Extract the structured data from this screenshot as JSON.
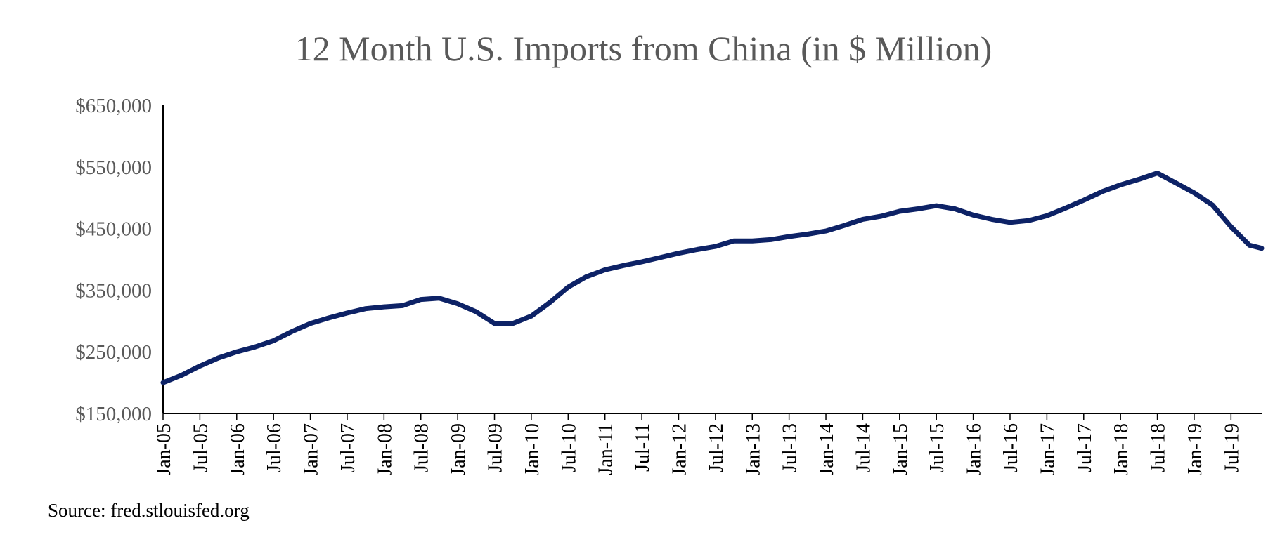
{
  "chart_data": {
    "type": "line",
    "title": "12 Month U.S. Imports from China (in $ Million)",
    "xlabel": "",
    "ylabel": "",
    "source": "Source: fred.stlouisfed.org",
    "ylim": [
      150000,
      650000
    ],
    "yticks": [
      150000,
      250000,
      350000,
      450000,
      550000,
      650000
    ],
    "ytick_labels": [
      "$150,000",
      "$250,000",
      "$350,000",
      "$450,000",
      "$550,000",
      "$650,000"
    ],
    "xtick_labels": [
      "Jan-05",
      "Jul-05",
      "Jan-06",
      "Jul-06",
      "Jan-07",
      "Jul-07",
      "Jan-08",
      "Jul-08",
      "Jan-09",
      "Jul-09",
      "Jan-10",
      "Jul-10",
      "Jan-11",
      "Jul-11",
      "Jan-12",
      "Jul-12",
      "Jan-13",
      "Jul-13",
      "Jan-14",
      "Jul-14",
      "Jan-15",
      "Jul-15",
      "Jan-16",
      "Jul-16",
      "Jan-17",
      "Jul-17",
      "Jan-18",
      "Jul-18",
      "Jan-19",
      "Jul-19"
    ],
    "grid": false,
    "line_color": "#0d2266",
    "series": [
      {
        "x": [
          "Jan-05",
          "Apr-05",
          "Jul-05",
          "Oct-05",
          "Jan-06",
          "Apr-06",
          "Jul-06",
          "Oct-06",
          "Jan-07",
          "Apr-07",
          "Jul-07",
          "Oct-07",
          "Jan-08",
          "Apr-08",
          "Jul-08",
          "Oct-08",
          "Jan-09",
          "Apr-09",
          "Jul-09",
          "Oct-09",
          "Jan-10",
          "Apr-10",
          "Jul-10",
          "Oct-10",
          "Jan-11",
          "Apr-11",
          "Jul-11",
          "Oct-11",
          "Jan-12",
          "Apr-12",
          "Jul-12",
          "Oct-12",
          "Jan-13",
          "Apr-13",
          "Jul-13",
          "Oct-13",
          "Jan-14",
          "Apr-14",
          "Jul-14",
          "Oct-14",
          "Jan-15",
          "Apr-15",
          "Jul-15",
          "Oct-15",
          "Jan-16",
          "Apr-16",
          "Jul-16",
          "Oct-16",
          "Jan-17",
          "Apr-17",
          "Jul-17",
          "Oct-17",
          "Jan-18",
          "Apr-18",
          "Jul-18",
          "Oct-18",
          "Jan-19",
          "Apr-19",
          "Jul-19",
          "Oct-19",
          "Dec-19"
        ],
        "values": [
          200000,
          212000,
          227000,
          240000,
          250000,
          258000,
          268000,
          283000,
          296000,
          305000,
          313000,
          320000,
          323000,
          325000,
          335000,
          337000,
          328000,
          315000,
          296000,
          296000,
          308000,
          330000,
          355000,
          372000,
          383000,
          390000,
          396000,
          403000,
          410000,
          416000,
          421000,
          430000,
          430000,
          432000,
          437000,
          441000,
          446000,
          455000,
          465000,
          470000,
          478000,
          482000,
          487000,
          482000,
          472000,
          465000,
          460000,
          463000,
          471000,
          483000,
          496000,
          510000,
          521000,
          530000,
          540000,
          524000,
          508000,
          488000,
          453000,
          423000,
          418000
        ]
      }
    ]
  }
}
